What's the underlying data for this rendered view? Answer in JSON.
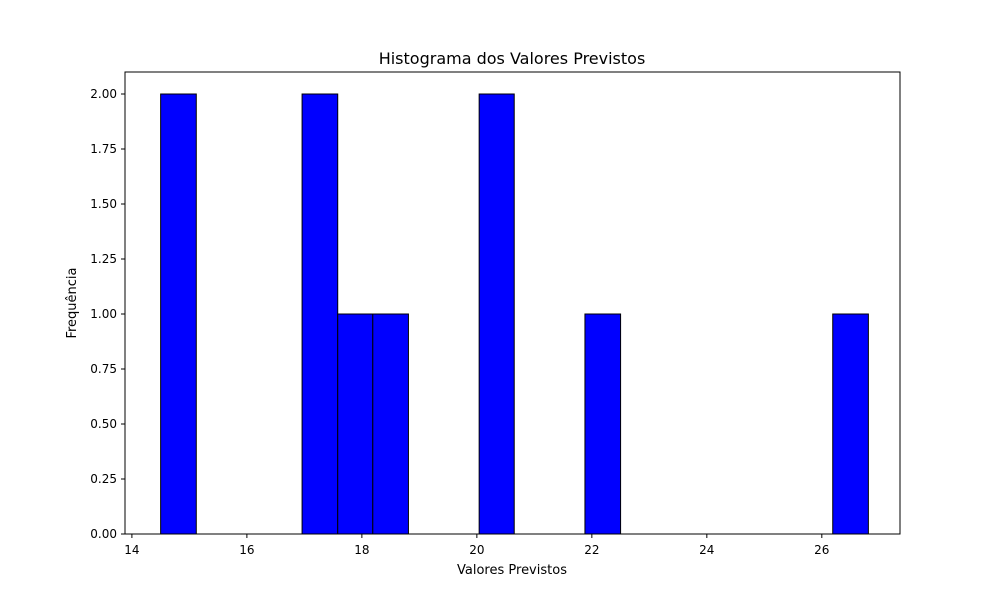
{
  "chart_data": {
    "type": "bar",
    "title": "Histograma dos Valores Previstos",
    "xlabel": "Valores Previstos",
    "ylabel": "Frequência",
    "xlim": [
      13.88,
      27.36
    ],
    "ylim": [
      0,
      2.1
    ],
    "x_ticks": [
      14,
      16,
      18,
      20,
      22,
      24,
      26
    ],
    "y_ticks": [
      0.0,
      0.25,
      0.5,
      0.75,
      1.0,
      1.25,
      1.5,
      1.75,
      2.0
    ],
    "bins": [
      {
        "x0": 14.5,
        "x1": 15.12,
        "value": 2
      },
      {
        "x0": 15.12,
        "x1": 15.73,
        "value": 0
      },
      {
        "x0": 15.73,
        "x1": 16.35,
        "value": 0
      },
      {
        "x0": 16.35,
        "x1": 16.96,
        "value": 0
      },
      {
        "x0": 16.96,
        "x1": 17.58,
        "value": 2
      },
      {
        "x0": 17.58,
        "x1": 18.19,
        "value": 1
      },
      {
        "x0": 18.19,
        "x1": 18.81,
        "value": 1
      },
      {
        "x0": 18.81,
        "x1": 19.42,
        "value": 0
      },
      {
        "x0": 19.42,
        "x1": 20.04,
        "value": 0
      },
      {
        "x0": 20.04,
        "x1": 20.65,
        "value": 2
      },
      {
        "x0": 20.65,
        "x1": 21.27,
        "value": 0
      },
      {
        "x0": 21.27,
        "x1": 21.88,
        "value": 0
      },
      {
        "x0": 21.88,
        "x1": 22.5,
        "value": 1
      },
      {
        "x0": 22.5,
        "x1": 23.11,
        "value": 0
      },
      {
        "x0": 23.11,
        "x1": 23.73,
        "value": 0
      },
      {
        "x0": 23.73,
        "x1": 24.35,
        "value": 0
      },
      {
        "x0": 24.35,
        "x1": 24.96,
        "value": 0
      },
      {
        "x0": 24.96,
        "x1": 25.58,
        "value": 0
      },
      {
        "x0": 25.58,
        "x1": 26.19,
        "value": 0
      },
      {
        "x0": 26.19,
        "x1": 26.81,
        "value": 1
      }
    ],
    "bar_color": "#0000ff",
    "edge_color": "#000000",
    "grid": false,
    "legend": "none"
  }
}
